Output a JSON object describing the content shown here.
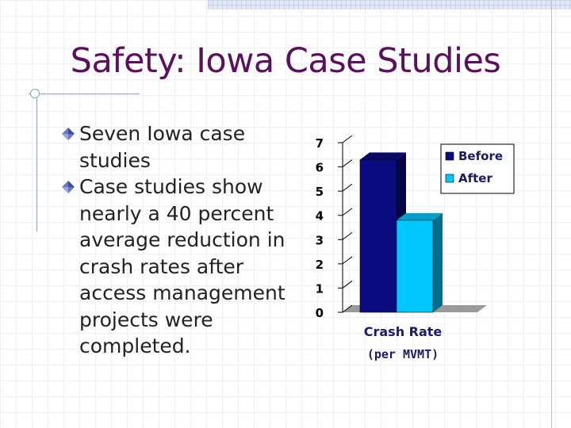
{
  "slide": {
    "title": "Safety: Iowa Case Studies",
    "bullets": [
      "Seven Iowa case studies",
      "Case studies show nearly a 40 percent average reduction in crash rates after access management projects were completed."
    ]
  },
  "chart_data": {
    "type": "bar",
    "categories": [
      "Crash Rate (per MVMT)"
    ],
    "xlabel": "Crash Rate",
    "xlabel_sub": "(per MVMT)",
    "series": [
      {
        "name": "Before",
        "values": [
          6.3
        ],
        "color": "#0b0b80"
      },
      {
        "name": "After",
        "values": [
          3.8
        ],
        "color": "#00c8ff"
      }
    ],
    "ylim": [
      0,
      7
    ],
    "yticks": [
      0,
      1,
      2,
      3,
      4,
      5,
      6,
      7
    ],
    "legend_position": "top-right",
    "grid": false,
    "three_d": true
  }
}
